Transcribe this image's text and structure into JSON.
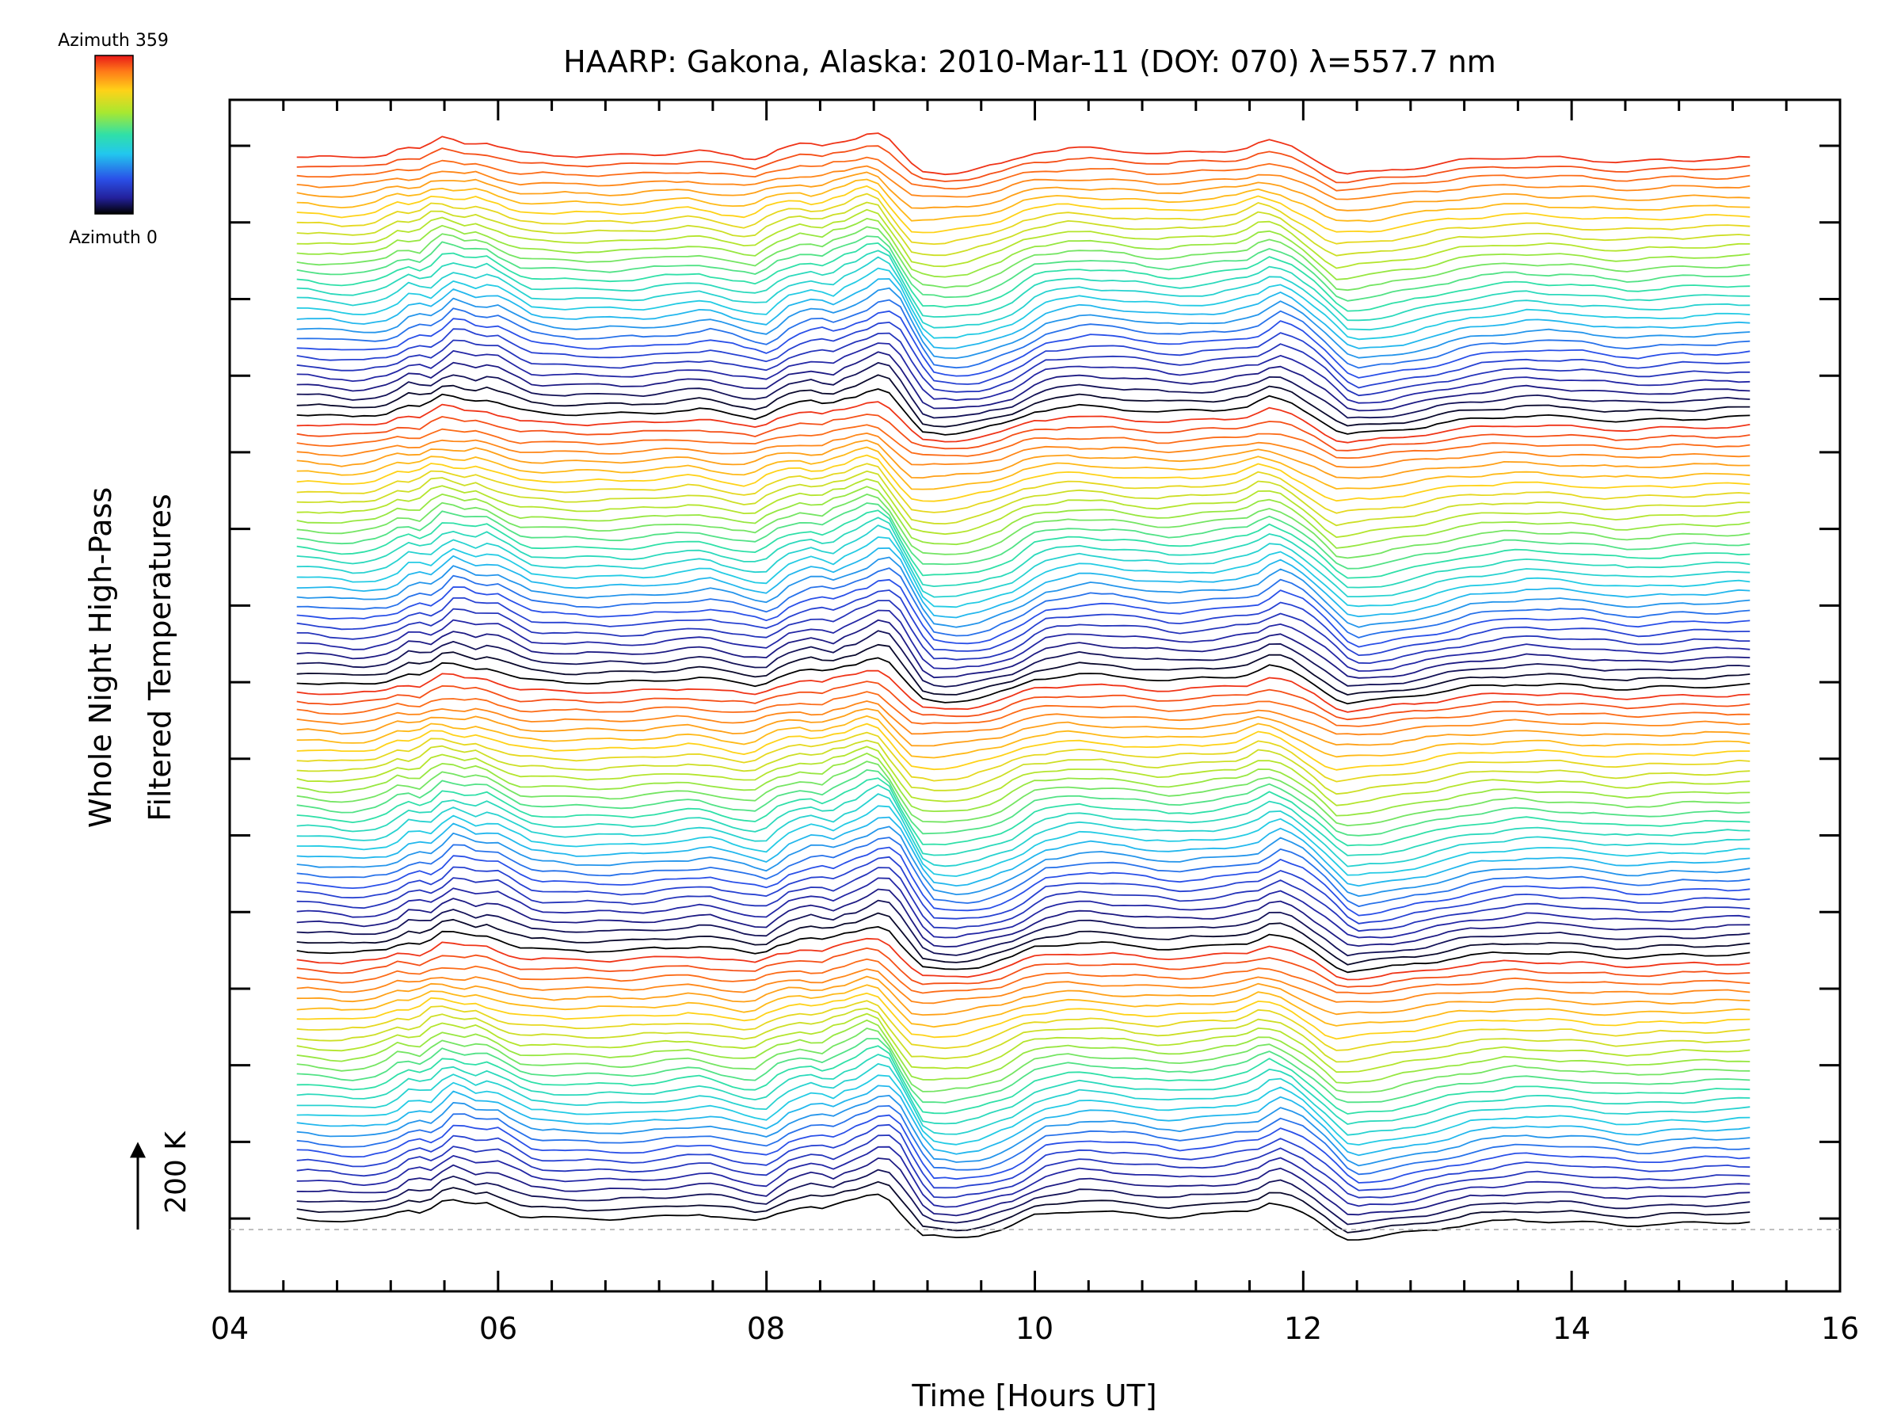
{
  "chart_data": {
    "type": "line",
    "title": "HAARP: Gakona,  Alaska: 2010-Mar-11 (DOY: 070) λ=557.7 nm",
    "xlabel": "Time [Hours UT]",
    "ylabel_line1": "Whole Night High-Pass",
    "ylabel_line2": "Filtered Temperatures",
    "xlim": [
      4,
      16
    ],
    "x_ticks": [
      "04",
      "06",
      "08",
      "10",
      "12",
      "14",
      "16"
    ],
    "x_minor_step_hours": 0.4,
    "y_range_kelvin": [
      -190,
      2920
    ],
    "y_major_tick_step_kelvin": 200,
    "scale_bar_label": "200 K",
    "scale_bar_kelvin": 200,
    "colorbar": {
      "max_label": "Azimuth 359",
      "min_label": "Azimuth 0",
      "colormap": [
        "#000000",
        "#23209a",
        "#2a50e8",
        "#22c8ee",
        "#30e0a8",
        "#a8e830",
        "#ffd218",
        "#ff7a18",
        "#e81818"
      ]
    },
    "stack": {
      "n_series": 112,
      "offset_kelvin_per_series": 25,
      "series_color_cycle_length": 28,
      "time_start_hours": 4.5,
      "time_end_hours": 15.33,
      "time_step_hours": 0.0833,
      "note": "series k is offset by k*25 K and coloured by its azimuth; all series share the same overall shape with slowly varying phase"
    },
    "reference_profile": {
      "x": [
        4.5,
        4.7,
        4.9,
        5.1,
        5.2,
        5.3,
        5.45,
        5.6,
        5.7,
        5.8,
        5.9,
        6.0,
        6.2,
        6.5,
        7.0,
        7.5,
        7.8,
        7.95,
        8.1,
        8.3,
        8.45,
        8.55,
        8.65,
        8.8,
        8.9,
        9.0,
        9.15,
        9.35,
        9.55,
        9.8,
        10.0,
        10.3,
        10.6,
        11.0,
        11.3,
        11.6,
        11.75,
        11.9,
        12.1,
        12.3,
        12.6,
        12.9,
        13.2,
        13.6,
        14.0,
        14.4,
        14.8,
        15.33
      ],
      "y_kelvin": [
        0,
        -5,
        -10,
        -3,
        8,
        30,
        20,
        60,
        52,
        40,
        50,
        35,
        5,
        0,
        0,
        15,
        -5,
        -12,
        22,
        40,
        28,
        48,
        55,
        82,
        70,
        18,
        -55,
        -60,
        -52,
        -28,
        10,
        25,
        18,
        5,
        12,
        25,
        52,
        35,
        -10,
        -65,
        -55,
        -38,
        -18,
        -5,
        -10,
        -22,
        -15,
        -10
      ]
    }
  }
}
